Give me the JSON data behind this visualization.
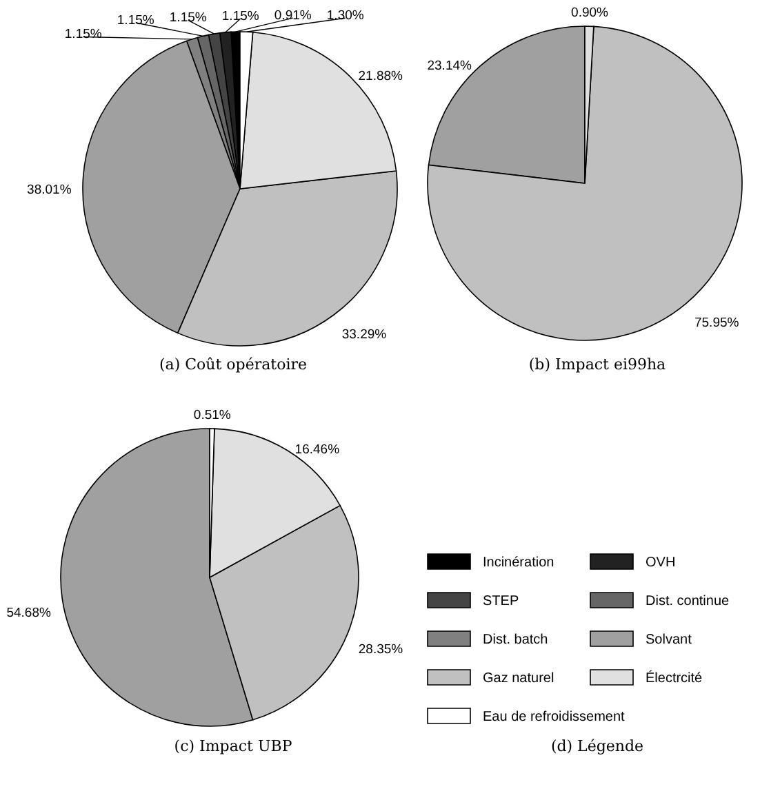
{
  "chart_data": [
    {
      "type": "pie",
      "title": "(a) Coût opératoire",
      "categories": [
        "Incinération",
        "OVH",
        "STEP",
        "Dist. continue",
        "Dist. batch",
        "Solvant",
        "Gaz naturel",
        "Électrcité",
        "Eau de refroidissement"
      ],
      "values": [
        0.91,
        1.15,
        1.15,
        1.15,
        1.15,
        38.01,
        33.29,
        21.88,
        1.3
      ],
      "colors": [
        "#000000",
        "#222222",
        "#444444",
        "#666666",
        "#808080",
        "#a0a0a0",
        "#c0c0c0",
        "#e0e0e0",
        "#ffffff"
      ],
      "value_labels": [
        "0.91%",
        "1.15%",
        "1.15%",
        "1.15%",
        "1.15%",
        "38.01%",
        "33.29%",
        "21.88%",
        "1.30%"
      ],
      "legend": "bottom right",
      "legend_title": "(d) Légende"
    },
    {
      "type": "pie",
      "title": "(b) Impact ei99ha",
      "categories": [
        null,
        null,
        null
      ],
      "values": [
        23.14,
        75.95,
        0.9
      ],
      "colors": [
        "#a0a0a0",
        "#c0c0c0",
        "#e0e0e0"
      ],
      "value_labels": [
        "23.14%",
        "75.95%",
        "0.90%"
      ]
    },
    {
      "type": "pie",
      "title": "(c) Impact UBP",
      "categories": [
        null,
        null,
        null,
        null
      ],
      "values": [
        54.68,
        28.35,
        16.46,
        0.51
      ],
      "colors": [
        "#a0a0a0",
        "#c0c0c0",
        "#e0e0e0",
        "#ffffff"
      ],
      "value_labels": [
        "54.68%",
        "28.35%",
        "16.46%",
        "0.51%"
      ]
    }
  ]
}
